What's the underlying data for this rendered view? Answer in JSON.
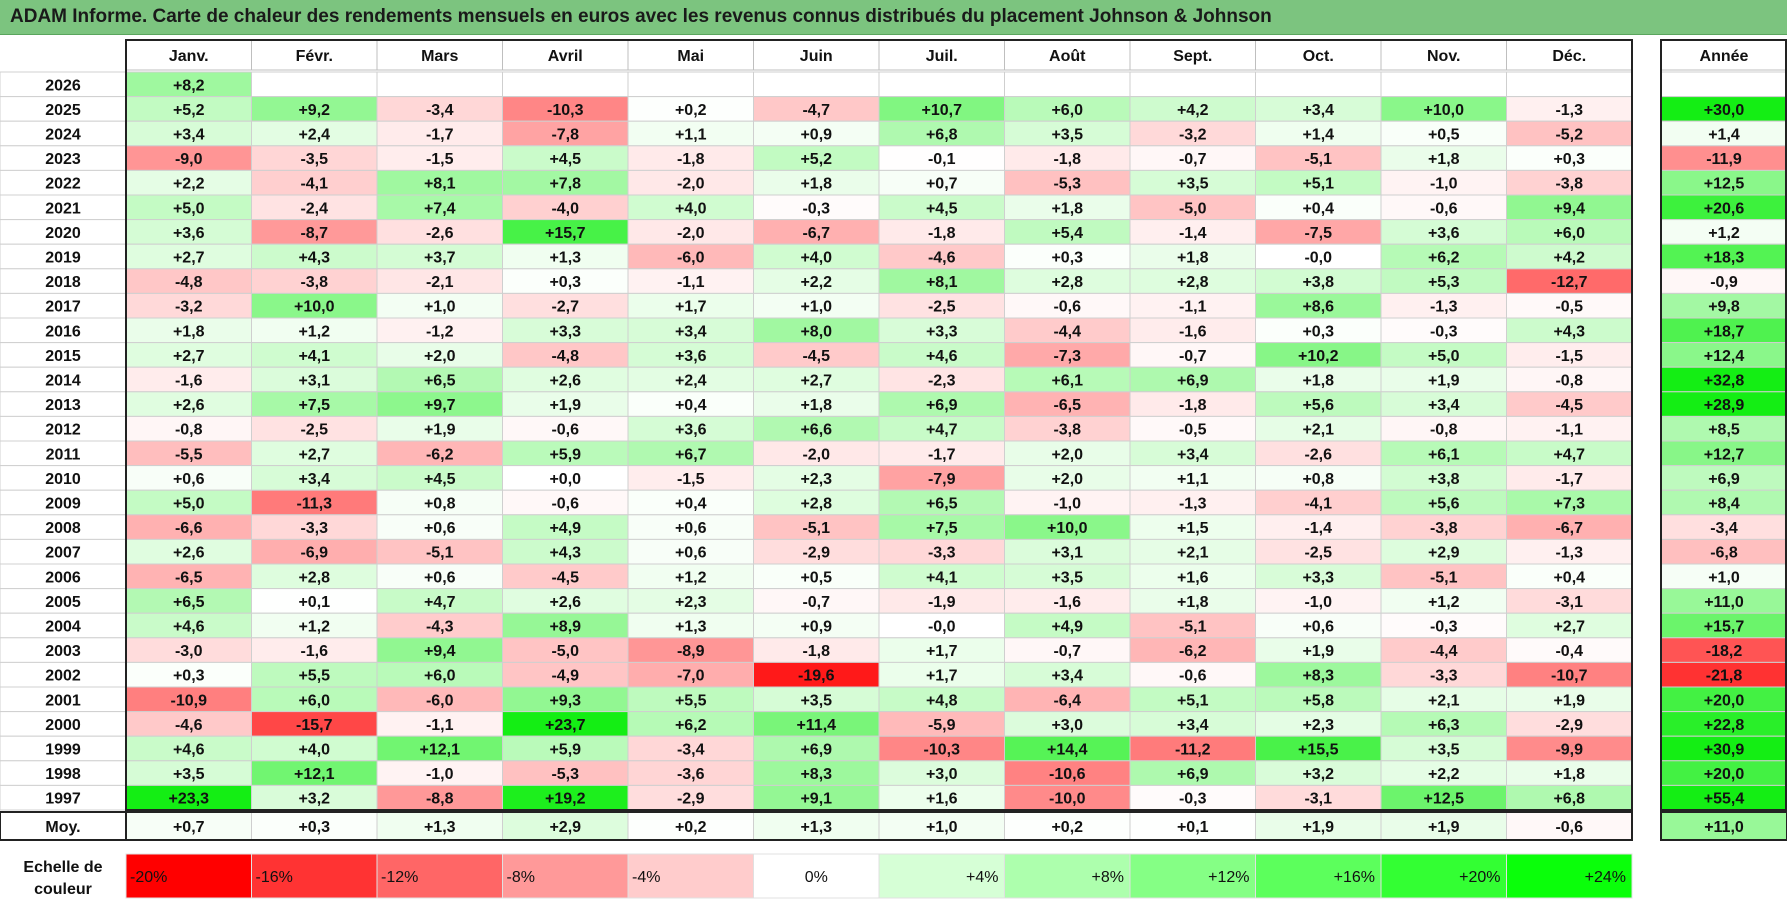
{
  "title": "ADAM Informe. Carte de chaleur des rendements mensuels en euros avec les revenus connus distribués du placement Johnson & Johnson",
  "chart_data": {
    "type": "heatmap",
    "columns": [
      "Janv.",
      "Févr.",
      "Mars",
      "Avril",
      "Mai",
      "Juin",
      "Juil.",
      "Août",
      "Sept.",
      "Oct.",
      "Nov.",
      "Déc."
    ],
    "year_column": "Année",
    "rows": [
      {
        "year": "2026",
        "values": [
          "+8,2",
          null,
          null,
          null,
          null,
          null,
          null,
          null,
          null,
          null,
          null,
          null
        ],
        "annual": null
      },
      {
        "year": "2025",
        "values": [
          "+5,2",
          "+9,2",
          "-3,4",
          "-10,3",
          "+0,2",
          "-4,7",
          "+10,7",
          "+6,0",
          "+4,2",
          "+3,4",
          "+10,0",
          "-1,3"
        ],
        "annual": "+30,0"
      },
      {
        "year": "2024",
        "values": [
          "+3,4",
          "+2,4",
          "-1,7",
          "-7,8",
          "+1,1",
          "+0,9",
          "+6,8",
          "+3,5",
          "-3,2",
          "+1,4",
          "+0,5",
          "-5,2"
        ],
        "annual": "+1,4"
      },
      {
        "year": "2023",
        "values": [
          "-9,0",
          "-3,5",
          "-1,5",
          "+4,5",
          "-1,8",
          "+5,2",
          "-0,1",
          "-1,8",
          "-0,7",
          "-5,1",
          "+1,8",
          "+0,3"
        ],
        "annual": "-11,9"
      },
      {
        "year": "2022",
        "values": [
          "+2,2",
          "-4,1",
          "+8,1",
          "+7,8",
          "-2,0",
          "+1,8",
          "+0,7",
          "-5,3",
          "+3,5",
          "+5,1",
          "-1,0",
          "-3,8"
        ],
        "annual": "+12,5"
      },
      {
        "year": "2021",
        "values": [
          "+5,0",
          "-2,4",
          "+7,4",
          "-4,0",
          "+4,0",
          "-0,3",
          "+4,5",
          "+1,8",
          "-5,0",
          "+0,4",
          "-0,6",
          "+9,4"
        ],
        "annual": "+20,6"
      },
      {
        "year": "2020",
        "values": [
          "+3,6",
          "-8,7",
          "-2,6",
          "+15,7",
          "-2,0",
          "-6,7",
          "-1,8",
          "+5,4",
          "-1,4",
          "-7,5",
          "+3,6",
          "+6,0"
        ],
        "annual": "+1,2"
      },
      {
        "year": "2019",
        "values": [
          "+2,7",
          "+4,3",
          "+3,7",
          "+1,3",
          "-6,0",
          "+4,0",
          "-4,6",
          "+0,3",
          "+1,8",
          "-0,0",
          "+6,2",
          "+4,2"
        ],
        "annual": "+18,3"
      },
      {
        "year": "2018",
        "values": [
          "-4,8",
          "-3,8",
          "-2,1",
          "+0,3",
          "-1,1",
          "+2,2",
          "+8,1",
          "+2,8",
          "+2,8",
          "+3,8",
          "+5,3",
          "-12,7"
        ],
        "annual": "-0,9"
      },
      {
        "year": "2017",
        "values": [
          "-3,2",
          "+10,0",
          "+1,0",
          "-2,7",
          "+1,7",
          "+1,0",
          "-2,5",
          "-0,6",
          "-1,1",
          "+8,6",
          "-1,3",
          "-0,5"
        ],
        "annual": "+9,8"
      },
      {
        "year": "2016",
        "values": [
          "+1,8",
          "+1,2",
          "-1,2",
          "+3,3",
          "+3,4",
          "+8,0",
          "+3,3",
          "-4,4",
          "-1,6",
          "+0,3",
          "-0,3",
          "+4,3"
        ],
        "annual": "+18,7"
      },
      {
        "year": "2015",
        "values": [
          "+2,7",
          "+4,1",
          "+2,0",
          "-4,8",
          "+3,6",
          "-4,5",
          "+4,6",
          "-7,3",
          "-0,7",
          "+10,2",
          "+5,0",
          "-1,5"
        ],
        "annual": "+12,4"
      },
      {
        "year": "2014",
        "values": [
          "-1,6",
          "+3,1",
          "+6,5",
          "+2,6",
          "+2,4",
          "+2,7",
          "-2,3",
          "+6,1",
          "+6,9",
          "+1,8",
          "+1,9",
          "-0,8"
        ],
        "annual": "+32,8"
      },
      {
        "year": "2013",
        "values": [
          "+2,6",
          "+7,5",
          "+9,7",
          "+1,9",
          "+0,4",
          "+1,8",
          "+6,9",
          "-6,5",
          "-1,8",
          "+5,6",
          "+3,4",
          "-4,5"
        ],
        "annual": "+28,9"
      },
      {
        "year": "2012",
        "values": [
          "-0,8",
          "-2,5",
          "+1,9",
          "-0,6",
          "+3,6",
          "+6,6",
          "+4,7",
          "-3,8",
          "-0,5",
          "+2,1",
          "-0,8",
          "-1,1"
        ],
        "annual": "+8,5"
      },
      {
        "year": "2011",
        "values": [
          "-5,5",
          "+2,7",
          "-6,2",
          "+5,9",
          "+6,7",
          "-2,0",
          "-1,7",
          "+2,0",
          "+3,4",
          "-2,6",
          "+6,1",
          "+4,7"
        ],
        "annual": "+12,7"
      },
      {
        "year": "2010",
        "values": [
          "+0,6",
          "+3,4",
          "+4,5",
          "+0,0",
          "-1,5",
          "+2,3",
          "-7,9",
          "+2,0",
          "+1,1",
          "+0,8",
          "+3,8",
          "-1,7"
        ],
        "annual": "+6,9"
      },
      {
        "year": "2009",
        "values": [
          "+5,0",
          "-11,3",
          "+0,8",
          "-0,6",
          "+0,4",
          "+2,8",
          "+6,5",
          "-1,0",
          "-1,3",
          "-4,1",
          "+5,6",
          "+7,3"
        ],
        "annual": "+8,4"
      },
      {
        "year": "2008",
        "values": [
          "-6,6",
          "-3,3",
          "+0,6",
          "+4,9",
          "+0,6",
          "-5,1",
          "+7,5",
          "+10,0",
          "+1,5",
          "-1,4",
          "-3,8",
          "-6,7"
        ],
        "annual": "-3,4"
      },
      {
        "year": "2007",
        "values": [
          "+2,6",
          "-6,9",
          "-5,1",
          "+4,3",
          "+0,6",
          "-2,9",
          "-3,3",
          "+3,1",
          "+2,1",
          "-2,5",
          "+2,9",
          "-1,3"
        ],
        "annual": "-6,8"
      },
      {
        "year": "2006",
        "values": [
          "-6,5",
          "+2,8",
          "+0,6",
          "-4,5",
          "+1,2",
          "+0,5",
          "+4,1",
          "+3,5",
          "+1,6",
          "+3,3",
          "-5,1",
          "+0,4"
        ],
        "annual": "+1,0"
      },
      {
        "year": "2005",
        "values": [
          "+6,5",
          "+0,1",
          "+4,7",
          "+2,6",
          "+2,3",
          "-0,7",
          "-1,9",
          "-1,6",
          "+1,8",
          "-1,0",
          "+1,2",
          "-3,1"
        ],
        "annual": "+11,0"
      },
      {
        "year": "2004",
        "values": [
          "+4,6",
          "+1,2",
          "-4,3",
          "+8,9",
          "+1,3",
          "+0,9",
          "-0,0",
          "+4,9",
          "-5,1",
          "+0,6",
          "-0,3",
          "+2,7"
        ],
        "annual": "+15,7"
      },
      {
        "year": "2003",
        "values": [
          "-3,0",
          "-1,6",
          "+9,4",
          "-5,0",
          "-8,9",
          "-1,8",
          "+1,7",
          "-0,7",
          "-6,2",
          "+1,9",
          "-4,4",
          "-0,4"
        ],
        "annual": "-18,2"
      },
      {
        "year": "2002",
        "values": [
          "+0,3",
          "+5,5",
          "+6,0",
          "-4,9",
          "-7,0",
          "-19,6",
          "+1,7",
          "+3,4",
          "-0,6",
          "+8,3",
          "-3,3",
          "-10,7"
        ],
        "annual": "-21,8"
      },
      {
        "year": "2001",
        "values": [
          "-10,9",
          "+6,0",
          "-6,0",
          "+9,3",
          "+5,5",
          "+3,5",
          "+4,8",
          "-6,4",
          "+5,1",
          "+5,8",
          "+2,1",
          "+1,9"
        ],
        "annual": "+20,0"
      },
      {
        "year": "2000",
        "values": [
          "-4,6",
          "-15,7",
          "-1,1",
          "+23,7",
          "+6,2",
          "+11,4",
          "-5,9",
          "+3,0",
          "+3,4",
          "+2,3",
          "+6,3",
          "-2,9"
        ],
        "annual": "+22,8"
      },
      {
        "year": "1999",
        "values": [
          "+4,6",
          "+4,0",
          "+12,1",
          "+5,9",
          "-3,4",
          "+6,9",
          "-10,3",
          "+14,4",
          "-11,2",
          "+15,5",
          "+3,5",
          "-9,9"
        ],
        "annual": "+30,9"
      },
      {
        "year": "1998",
        "values": [
          "+3,5",
          "+12,1",
          "-1,0",
          "-5,3",
          "-3,6",
          "+8,3",
          "+3,0",
          "-10,6",
          "+6,9",
          "+3,2",
          "+2,2",
          "+1,8"
        ],
        "annual": "+20,0"
      },
      {
        "year": "1997",
        "values": [
          "+23,3",
          "+3,2",
          "-8,8",
          "+19,2",
          "-2,9",
          "+9,1",
          "+1,6",
          "-10,0",
          "-0,3",
          "-3,1",
          "+12,5",
          "+6,8"
        ],
        "annual": "+55,4"
      }
    ],
    "average": {
      "label": "Moy.",
      "values": [
        "+0,7",
        "+0,3",
        "+1,3",
        "+2,9",
        "+0,2",
        "+1,3",
        "+1,0",
        "+0,2",
        "+0,1",
        "+1,9",
        "+1,9",
        "-0,6"
      ],
      "annual": "+11,0"
    },
    "scale": {
      "label_line1": "Echelle de",
      "label_line2": "couleur",
      "steps": [
        {
          "label": "-20%",
          "value": -20,
          "color": "#ff0000"
        },
        {
          "label": "-16%",
          "value": -16,
          "color": "#ff3333"
        },
        {
          "label": "-12%",
          "value": -12,
          "color": "#ff6666"
        },
        {
          "label": "-8%",
          "value": -8,
          "color": "#ff9999"
        },
        {
          "label": "-4%",
          "value": -4,
          "color": "#ffcccc"
        },
        {
          "label": "0%",
          "value": 0,
          "color": "#ffffff"
        },
        {
          "label": "+4%",
          "value": 4,
          "color": "#d6ffd6"
        },
        {
          "label": "+8%",
          "value": 8,
          "color": "#adffad"
        },
        {
          "label": "+12%",
          "value": 12,
          "color": "#85ff85"
        },
        {
          "label": "+16%",
          "value": 16,
          "color": "#5cff5c"
        },
        {
          "label": "+20%",
          "value": 20,
          "color": "#33ff33"
        },
        {
          "label": "+24%",
          "value": 24,
          "color": "#0aff0a"
        }
      ]
    },
    "colors": {
      "title_bar": "#7cc47f",
      "negative_full": "#ff0000",
      "positive_full": "#00ee00",
      "neutral": "#ffffff"
    }
  }
}
